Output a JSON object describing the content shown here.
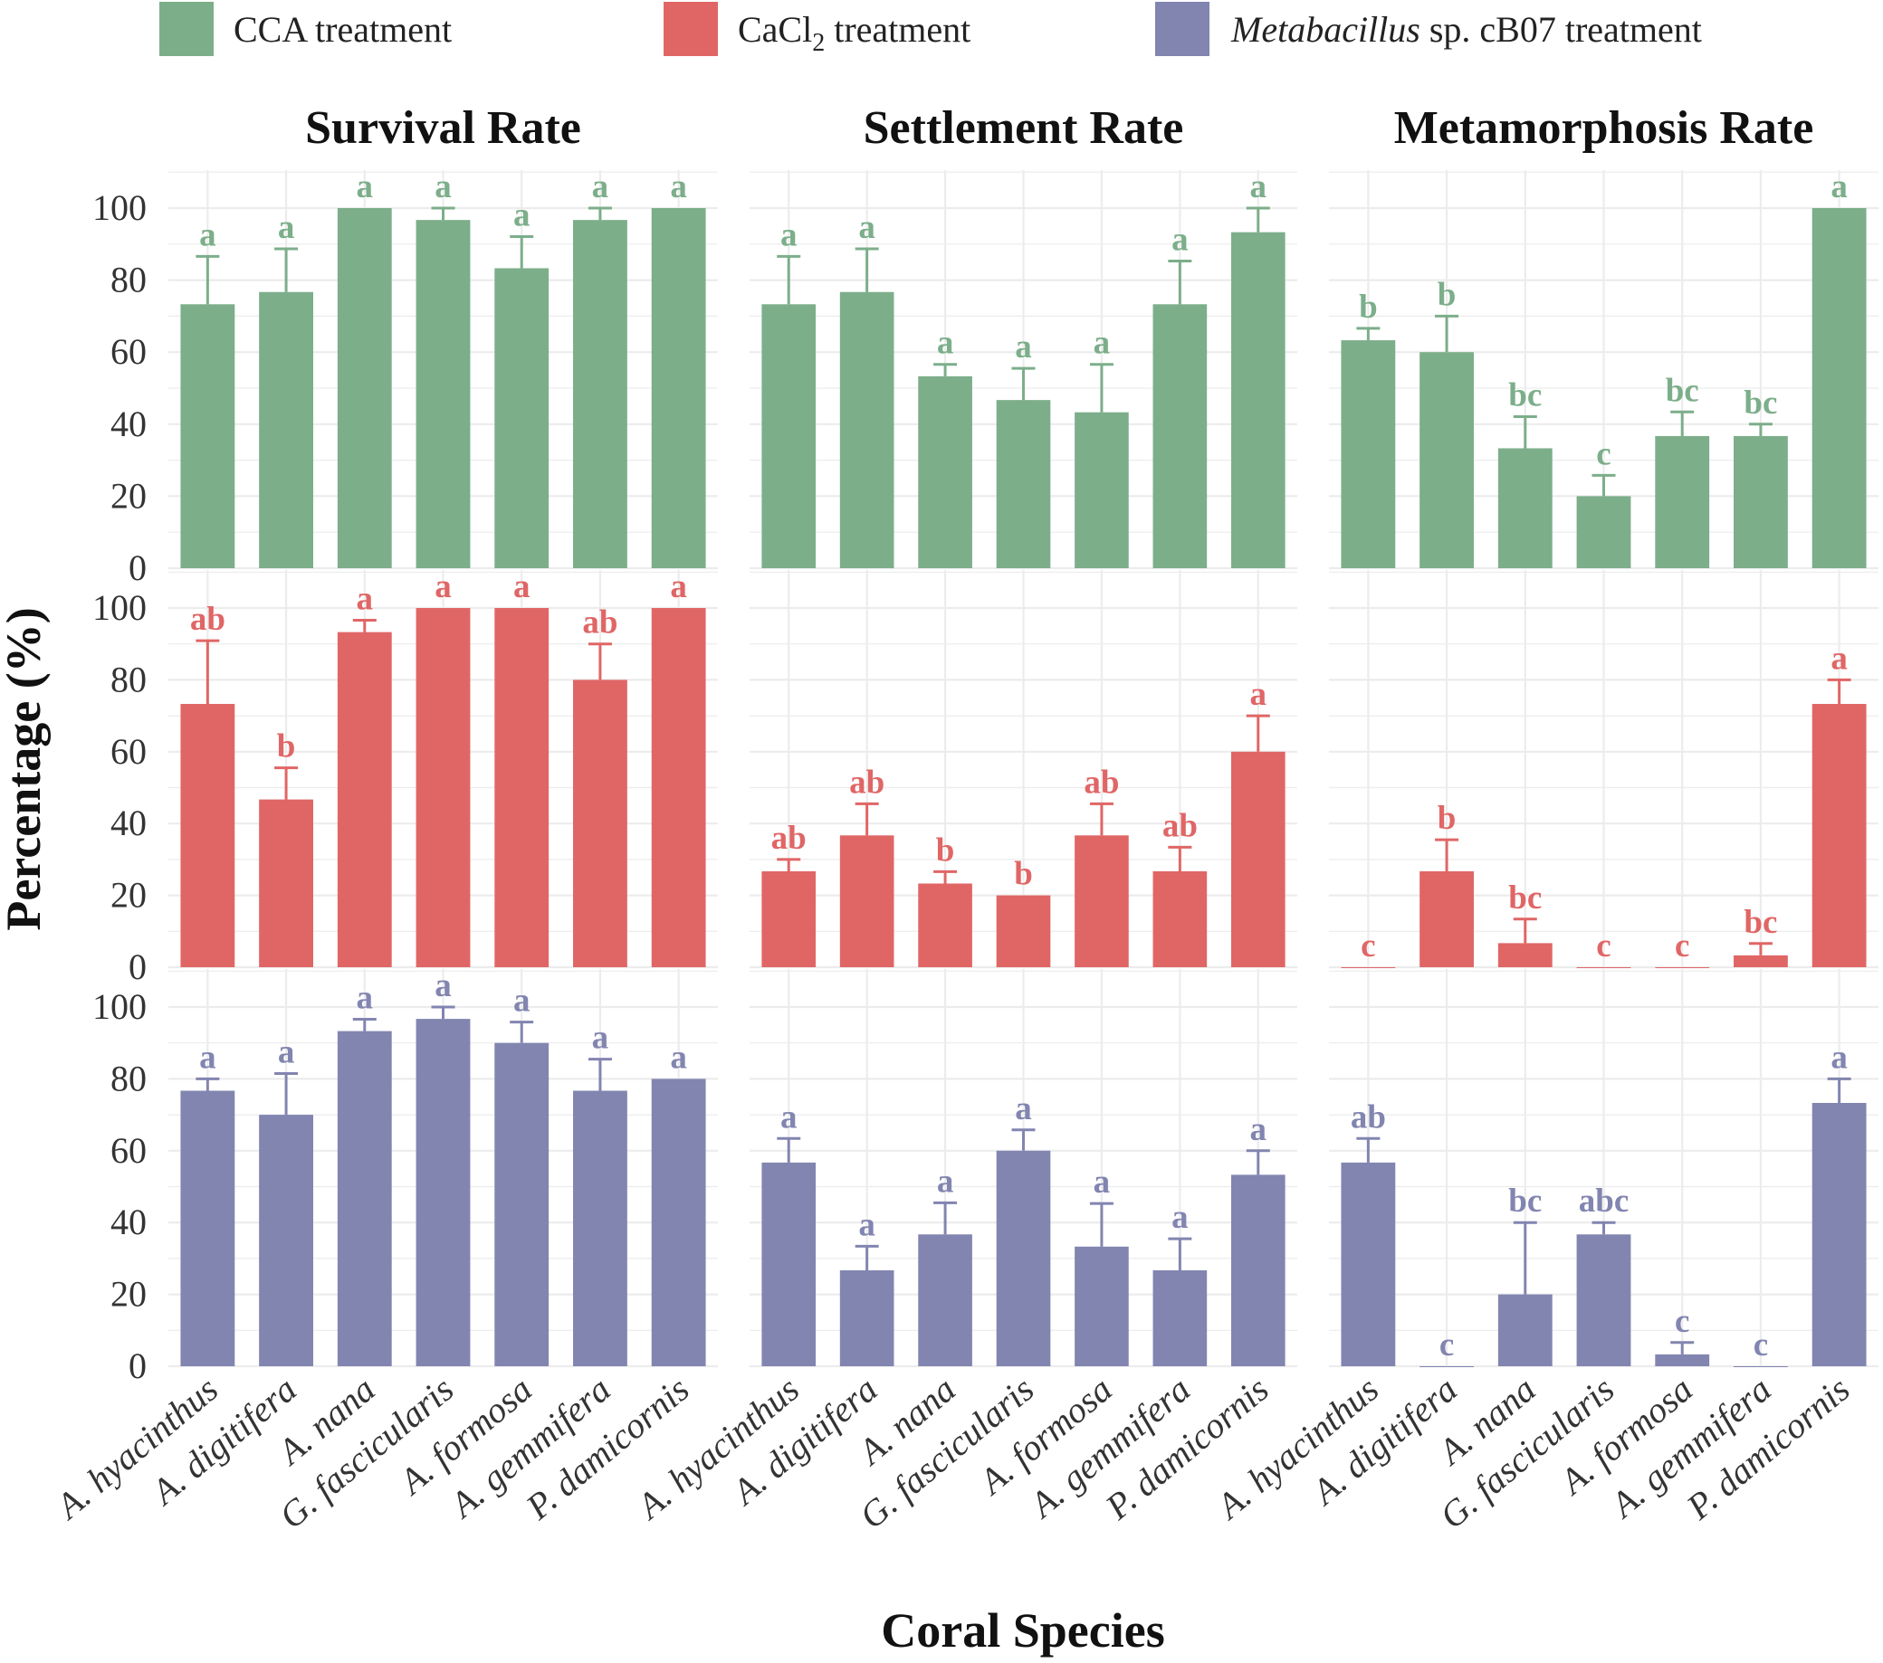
{
  "chart_data": {
    "type": "bar",
    "xlabel": "Coral Species",
    "ylabel": "Percentage (%)",
    "ylim": [
      0,
      100
    ],
    "yticks": [
      "0",
      "20",
      "40",
      "60",
      "80",
      "100"
    ],
    "categories": [
      "A. hyacinthus",
      "A. digitifera",
      "A. nana",
      "G. fascicularis",
      "A. formosa",
      "A. gemmifera",
      "P. damicornis"
    ],
    "colors": {
      "CCA": "#7cae8a",
      "CaCl2": "#e06666",
      "Metabacillus": "#8285b0",
      "grid": "#ececec"
    },
    "legend": {
      "placement": "top",
      "items": [
        {
          "key": "CCA",
          "text": "CCA treatment"
        },
        {
          "key": "CaCl2",
          "prefix": "CaCl",
          "sub": "2",
          "suffix": " treatment"
        },
        {
          "key": "Metabacillus",
          "italic": "Metabacillus",
          "suffix": " sp. cB07 treatment"
        }
      ]
    },
    "columns": [
      "Survival Rate",
      "Settlement Rate",
      "Metamorphosis Rate"
    ],
    "rows": [
      "CCA",
      "CaCl2",
      "Metabacillus"
    ],
    "panels": [
      {
        "row": "CCA",
        "column": "Survival Rate",
        "values": [
          73.3,
          76.7,
          100,
          96.7,
          83.3,
          96.7,
          100
        ],
        "errors": [
          13.3,
          12.0,
          0,
          3.3,
          8.8,
          3.3,
          0
        ],
        "letters": [
          "a",
          "a",
          "a",
          "a",
          "a",
          "a",
          "a"
        ]
      },
      {
        "row": "CCA",
        "column": "Settlement Rate",
        "values": [
          73.3,
          76.7,
          53.3,
          46.7,
          43.3,
          73.3,
          93.3
        ],
        "errors": [
          13.3,
          12.0,
          3.3,
          8.8,
          13.3,
          12.0,
          6.7
        ],
        "letters": [
          "a",
          "a",
          "a",
          "a",
          "a",
          "a",
          "a"
        ]
      },
      {
        "row": "CCA",
        "column": "Metamorphosis Rate",
        "values": [
          63.3,
          60.0,
          33.3,
          20.0,
          36.7,
          36.7,
          100
        ],
        "errors": [
          3.3,
          10.0,
          8.8,
          5.8,
          6.7,
          3.3,
          0
        ],
        "letters": [
          "b",
          "b",
          "bc",
          "c",
          "bc",
          "bc",
          "a"
        ]
      },
      {
        "row": "CaCl2",
        "column": "Survival Rate",
        "values": [
          73.3,
          46.7,
          93.3,
          100,
          100,
          80.0,
          100
        ],
        "errors": [
          17.6,
          8.8,
          3.3,
          0,
          0,
          10.0,
          0
        ],
        "letters": [
          "ab",
          "b",
          "a",
          "a",
          "a",
          "ab",
          "a"
        ]
      },
      {
        "row": "CaCl2",
        "column": "Settlement Rate",
        "values": [
          26.7,
          36.7,
          23.3,
          20.0,
          36.7,
          26.7,
          60.0
        ],
        "errors": [
          3.3,
          8.8,
          3.3,
          0,
          8.8,
          6.7,
          10.0
        ],
        "letters": [
          "ab",
          "ab",
          "b",
          "b",
          "ab",
          "ab",
          "a"
        ]
      },
      {
        "row": "CaCl2",
        "column": "Metamorphosis Rate",
        "values": [
          0,
          26.7,
          6.7,
          0,
          0,
          3.3,
          73.3
        ],
        "errors": [
          0,
          8.8,
          6.7,
          0,
          0,
          3.3,
          6.7
        ],
        "letters": [
          "c",
          "b",
          "bc",
          "c",
          "c",
          "bc",
          "a"
        ]
      },
      {
        "row": "Metabacillus",
        "column": "Survival Rate",
        "values": [
          76.7,
          70.0,
          93.3,
          96.7,
          90.0,
          76.7,
          80.0
        ],
        "errors": [
          3.3,
          11.5,
          3.3,
          3.3,
          5.8,
          8.8,
          0
        ],
        "letters": [
          "a",
          "a",
          "a",
          "a",
          "a",
          "a",
          "a"
        ]
      },
      {
        "row": "Metabacillus",
        "column": "Settlement Rate",
        "values": [
          56.7,
          26.7,
          36.7,
          60.0,
          33.3,
          26.7,
          53.3
        ],
        "errors": [
          6.7,
          6.7,
          8.8,
          5.8,
          12.0,
          8.8,
          6.7
        ],
        "letters": [
          "a",
          "a",
          "a",
          "a",
          "a",
          "a",
          "a"
        ]
      },
      {
        "row": "Metabacillus",
        "column": "Metamorphosis Rate",
        "values": [
          56.7,
          0,
          20.0,
          36.7,
          3.3,
          0,
          73.3
        ],
        "errors": [
          6.7,
          0,
          20.0,
          3.3,
          3.3,
          0,
          6.7
        ],
        "letters": [
          "ab",
          "c",
          "bc",
          "abc",
          "c",
          "c",
          "a"
        ]
      }
    ]
  }
}
